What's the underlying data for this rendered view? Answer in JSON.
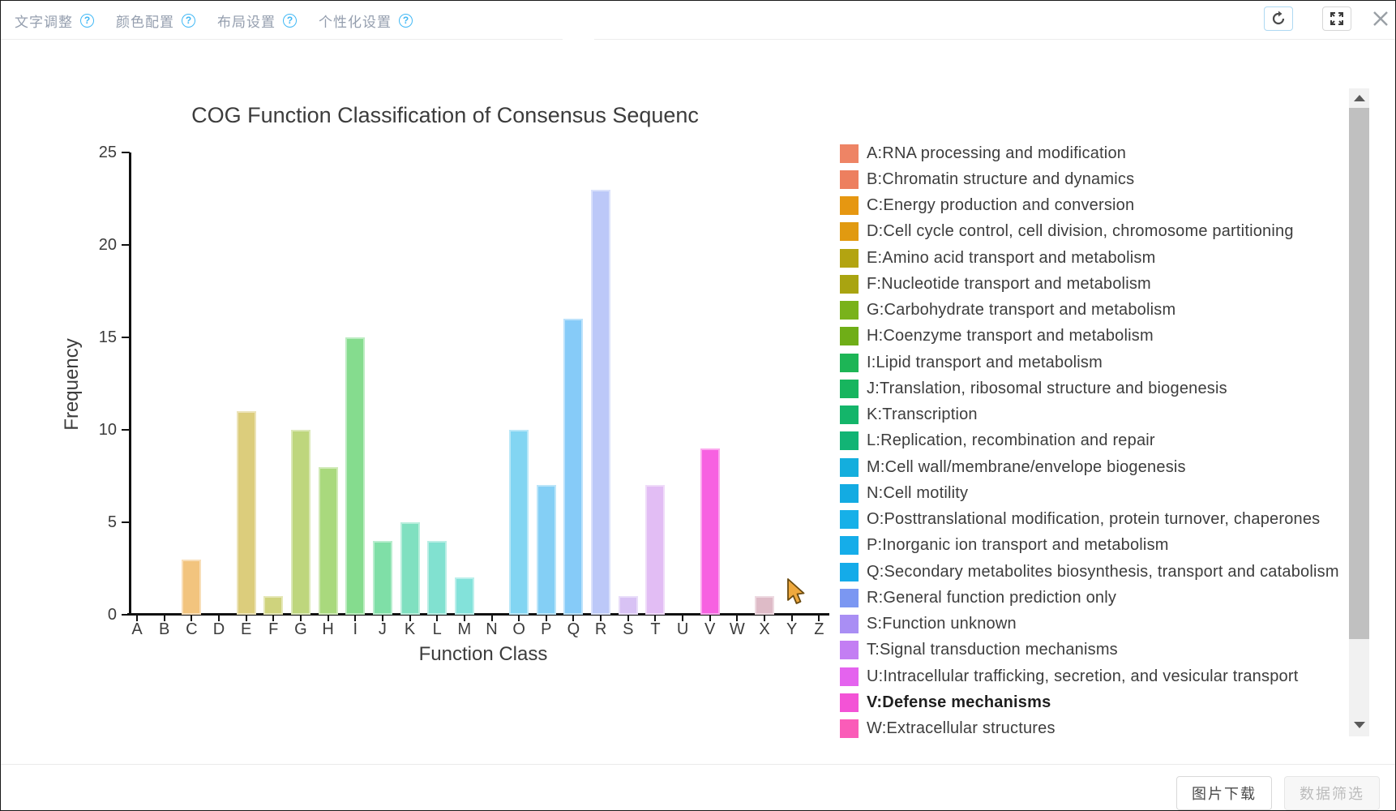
{
  "toolbar": {
    "tabs": [
      {
        "label": "文字调整"
      },
      {
        "label": "颜色配置"
      },
      {
        "label": "布局设置"
      },
      {
        "label": "个性化设置"
      }
    ],
    "help_glyph": "?",
    "help_color": "#41b8f5",
    "refresh_border_color": "#aed9f2",
    "icons": [
      "refresh-icon",
      "fullscreen-icon",
      "close-icon"
    ]
  },
  "chart_data": {
    "type": "bar",
    "title": "COG Function Classification of Consensus Sequenc",
    "xlabel": "Function Class",
    "ylabel": "Frequency",
    "ylim": [
      0,
      25
    ],
    "yticks": [
      0,
      5,
      10,
      15,
      20,
      25
    ],
    "grid": false,
    "categories": [
      "A",
      "B",
      "C",
      "D",
      "E",
      "F",
      "G",
      "H",
      "I",
      "J",
      "K",
      "L",
      "M",
      "N",
      "O",
      "P",
      "Q",
      "R",
      "S",
      "T",
      "U",
      "V",
      "W",
      "X",
      "Y",
      "Z"
    ],
    "values": [
      0,
      0,
      3,
      0,
      11,
      1,
      10,
      8,
      15,
      4,
      5,
      4,
      2,
      0,
      10,
      7,
      16,
      23,
      1,
      7,
      0,
      9,
      0,
      1,
      0,
      0
    ],
    "bar_colors": [
      "#f0ad7e",
      "#f1b97e",
      "#f2c47e",
      "#e9c97d",
      "#dccd7c",
      "#cfd37d",
      "#bed67d",
      "#a9d97d",
      "#85dc8e",
      "#7fdfa7",
      "#80e0c0",
      "#81e1d0",
      "#83e2da",
      "#82dce7",
      "#82d5f2",
      "#84cff5",
      "#86cbf8",
      "#bcc8f8",
      "#d8c2f4",
      "#e2bdf4",
      "#f09bef",
      "#f761e1",
      "#f97fcd",
      "#debbc7",
      "#e0c2cb",
      "#e2c9d0"
    ],
    "legend_position": "right"
  },
  "legend": {
    "items": [
      {
        "label": "A:RNA processing and modification",
        "color": "#ee8465",
        "bold": false
      },
      {
        "label": "B:Chromatin structure and dynamics",
        "color": "#ed7f5f",
        "bold": false
      },
      {
        "label": "C:Energy production and conversion",
        "color": "#e69711",
        "bold": false
      },
      {
        "label": "D:Cell cycle control, cell division, chromosome partitioning",
        "color": "#e19a10",
        "bold": false
      },
      {
        "label": "E:Amino acid transport and metabolism",
        "color": "#b3a411",
        "bold": false
      },
      {
        "label": "F:Nucleotide transport and metabolism",
        "color": "#a9a411",
        "bold": false
      },
      {
        "label": "G:Carbohydrate transport and metabolism",
        "color": "#79b21b",
        "bold": false
      },
      {
        "label": "H:Coenzyme transport and metabolism",
        "color": "#6fae17",
        "bold": false
      },
      {
        "label": "I:Lipid transport and metabolism",
        "color": "#1db556",
        "bold": false
      },
      {
        "label": "J:Translation, ribosomal structure and biogenesis",
        "color": "#17b55e",
        "bold": false
      },
      {
        "label": "K:Transcription",
        "color": "#14b56a",
        "bold": false
      },
      {
        "label": "L:Replication, recombination and repair",
        "color": "#12b475",
        "bold": false
      },
      {
        "label": "M:Cell wall/membrane/envelope biogenesis",
        "color": "#14aedd",
        "bold": false
      },
      {
        "label": "N:Cell motility",
        "color": "#13abe2",
        "bold": false
      },
      {
        "label": "O:Posttranslational modification, protein turnover, chaperones",
        "color": "#16b0e8",
        "bold": false
      },
      {
        "label": "P:Inorganic ion transport and metabolism",
        "color": "#15ade9",
        "bold": false
      },
      {
        "label": "Q:Secondary metabolites biosynthesis, transport and catabolism",
        "color": "#14abe9",
        "bold": false
      },
      {
        "label": "R:General function prediction only",
        "color": "#7b97f2",
        "bold": false
      },
      {
        "label": "S:Function unknown",
        "color": "#a98ef4",
        "bold": false
      },
      {
        "label": "T:Signal transduction mechanisms",
        "color": "#c37ef3",
        "bold": false
      },
      {
        "label": "U:Intracellular trafficking, secretion, and vesicular transport",
        "color": "#e463ee",
        "bold": false
      },
      {
        "label": "V:Defense mechanisms",
        "color": "#f353d6",
        "bold": true
      },
      {
        "label": "W:Extracellular structures",
        "color": "#fa5cb8",
        "bold": false
      }
    ]
  },
  "footer": {
    "download_label": "图片下载",
    "filter_label": "数据筛选"
  }
}
